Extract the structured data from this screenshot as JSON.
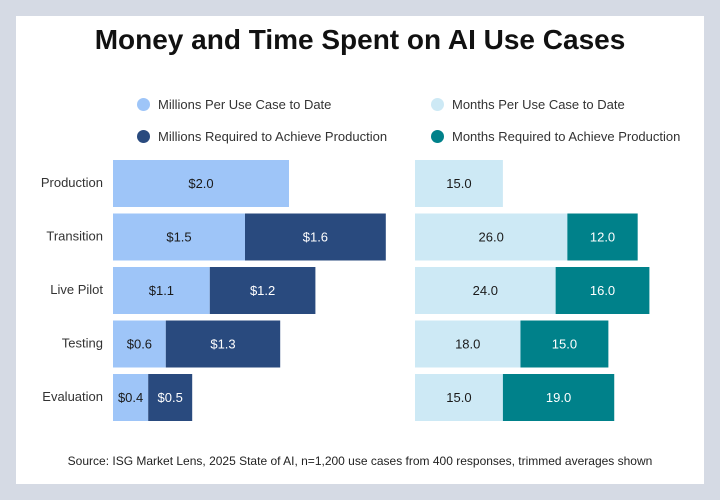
{
  "chart_data": {
    "type": "bar",
    "title": "Money and Time Spent on AI Use Cases",
    "categories": [
      "Production",
      "Transition",
      "Live Pilot",
      "Testing",
      "Evaluation"
    ],
    "money": {
      "series": [
        {
          "name": "Millions Per Use Case to Date",
          "color": "#9ec5f8",
          "values": [
            2.0,
            1.5,
            1.1,
            0.6,
            0.4
          ],
          "labels": [
            "$2.0",
            "$1.5",
            "$1.1",
            "$0.6",
            "$0.4"
          ]
        },
        {
          "name": "Millions Required to Achieve Production",
          "color": "#294a7e",
          "values": [
            null,
            1.6,
            1.2,
            1.3,
            0.5
          ],
          "labels": [
            "",
            "$1.6",
            "$1.2",
            "$1.3",
            "$0.5"
          ]
        }
      ]
    },
    "time": {
      "series": [
        {
          "name": "Months Per Use Case to Date",
          "color": "#cde9f5",
          "values": [
            15.0,
            26.0,
            24.0,
            18.0,
            15.0
          ],
          "labels": [
            "15.0",
            "26.0",
            "24.0",
            "18.0",
            "15.0"
          ]
        },
        {
          "name": "Months Required to Achieve Production",
          "color": "#00818a",
          "values": [
            null,
            12.0,
            16.0,
            15.0,
            19.0
          ],
          "labels": [
            "",
            "12.0",
            "16.0",
            "15.0",
            "19.0"
          ]
        }
      ]
    },
    "orientation": "horizontal",
    "stacked": true,
    "legend_position": "top",
    "grid": false
  },
  "source_note": "Source: ISG Market Lens, 2025 State of AI, n=1,200 use cases from 400 responses, trimmed averages shown"
}
